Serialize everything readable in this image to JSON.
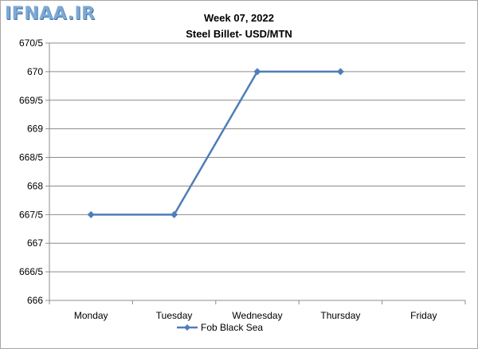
{
  "logo_text": "IFNAA.IR",
  "chart_data": {
    "type": "line",
    "title": "Week 07, 2022",
    "subtitle": "Steel Billet- USD/MTN",
    "categories": [
      "Monday",
      "Tuesday",
      "Wednesday",
      "Thursday",
      "Friday"
    ],
    "series": [
      {
        "name": "Fob Black Sea",
        "color": "#4f7db8",
        "values": [
          667.5,
          667.5,
          670,
          670,
          null
        ]
      }
    ],
    "y_tick_values": [
      666,
      666.5,
      667,
      667.5,
      668,
      668.5,
      669,
      669.5,
      670,
      670.5
    ],
    "y_tick_labels": [
      "666",
      "666/5",
      "667",
      "667/5",
      "668",
      "668/5",
      "669",
      "669/5",
      "670",
      "670/5"
    ],
    "ylim": [
      666,
      670.5
    ],
    "grid": "horizontal",
    "legend_position": "bottom"
  }
}
